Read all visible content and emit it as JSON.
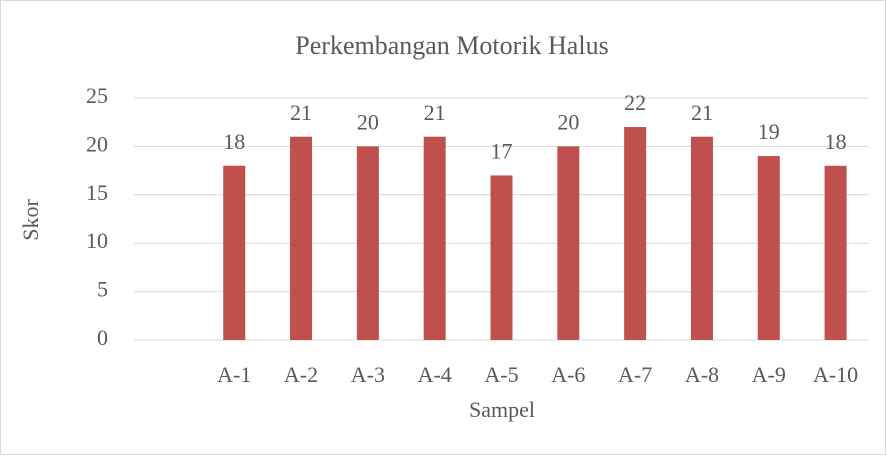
{
  "chart_data": {
    "type": "bar",
    "title": "Perkembangan Motorik Halus",
    "x_label": "Sampel",
    "y_label": "Skor",
    "categories": [
      null,
      "A-1",
      "A-2",
      "A-3",
      "A-4",
      "A-5",
      "A-6",
      "A-7",
      "A-8",
      "A-9",
      "A-10"
    ],
    "values": [
      null,
      18,
      21,
      20,
      21,
      17,
      20,
      22,
      21,
      19,
      18
    ],
    "color": "#c0504d",
    "ylim": [
      0,
      25
    ],
    "yticks": [
      0,
      5,
      10,
      15,
      20,
      25
    ],
    "grid": true
  }
}
